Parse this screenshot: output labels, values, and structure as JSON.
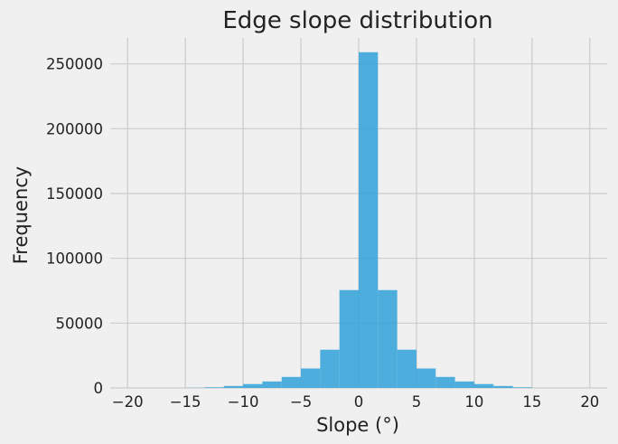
{
  "chart_data": {
    "type": "bar",
    "title": "Edge slope distribution",
    "xlabel": "Slope (°)",
    "ylabel": "Frequency",
    "xlim": [
      -21.5,
      21.5
    ],
    "ylim": [
      0,
      270000
    ],
    "xticks": [
      -20,
      -15,
      -10,
      -5,
      0,
      5,
      10,
      15,
      20
    ],
    "yticks": [
      0,
      50000,
      100000,
      150000,
      200000,
      250000
    ],
    "grid": true,
    "bar_color": "#30a2da",
    "background_color": "#f0f0f0",
    "bin_width": 1.667,
    "bins": [
      {
        "x0": -15.0,
        "x1": -13.333,
        "value": 100
      },
      {
        "x0": -13.333,
        "x1": -11.667,
        "value": 500
      },
      {
        "x0": -11.667,
        "x1": -10.0,
        "value": 1500
      },
      {
        "x0": -10.0,
        "x1": -8.333,
        "value": 3000
      },
      {
        "x0": -8.333,
        "x1": -6.667,
        "value": 5000
      },
      {
        "x0": -6.667,
        "x1": -5.0,
        "value": 8500
      },
      {
        "x0": -5.0,
        "x1": -3.333,
        "value": 15000
      },
      {
        "x0": -3.333,
        "x1": -1.667,
        "value": 29500
      },
      {
        "x0": -1.667,
        "x1": 0.0,
        "value": 75500
      },
      {
        "x0": 0.0,
        "x1": 1.667,
        "value": 259000
      },
      {
        "x0": 1.667,
        "x1": 3.333,
        "value": 75500
      },
      {
        "x0": 3.333,
        "x1": 5.0,
        "value": 29500
      },
      {
        "x0": 5.0,
        "x1": 6.667,
        "value": 15000
      },
      {
        "x0": 6.667,
        "x1": 8.333,
        "value": 8500
      },
      {
        "x0": 8.333,
        "x1": 10.0,
        "value": 5000
      },
      {
        "x0": 10.0,
        "x1": 11.667,
        "value": 3000
      },
      {
        "x0": 11.667,
        "x1": 13.333,
        "value": 1500
      },
      {
        "x0": 13.333,
        "x1": 15.0,
        "value": 500
      }
    ]
  }
}
